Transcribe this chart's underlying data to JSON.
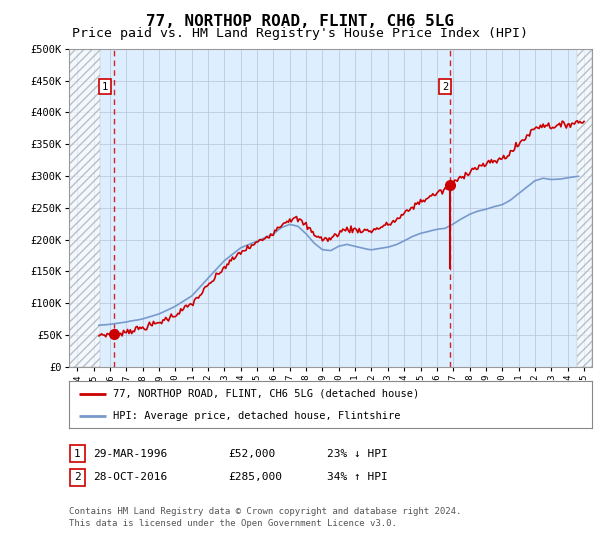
{
  "title": "77, NORTHOP ROAD, FLINT, CH6 5LG",
  "subtitle": "Price paid vs. HM Land Registry's House Price Index (HPI)",
  "title_fontsize": 11.5,
  "subtitle_fontsize": 9.5,
  "xlim": [
    1993.5,
    2025.5
  ],
  "ylim": [
    0,
    500000
  ],
  "yticks": [
    0,
    50000,
    100000,
    150000,
    200000,
    250000,
    300000,
    350000,
    400000,
    450000,
    500000
  ],
  "ytick_labels": [
    "£0",
    "£50K",
    "£100K",
    "£150K",
    "£200K",
    "£250K",
    "£300K",
    "£350K",
    "£400K",
    "£450K",
    "£500K"
  ],
  "xtick_years": [
    1994,
    1995,
    1996,
    1997,
    1998,
    1999,
    2000,
    2001,
    2002,
    2003,
    2004,
    2005,
    2006,
    2007,
    2008,
    2009,
    2010,
    2011,
    2012,
    2013,
    2014,
    2015,
    2016,
    2017,
    2018,
    2019,
    2020,
    2021,
    2022,
    2023,
    2024,
    2025
  ],
  "plot_bg_color": "#ddeeff",
  "grid_color": "#b0b8d0",
  "transaction1": {
    "year": 1996.24,
    "price": 52000,
    "label": "1"
  },
  "transaction2": {
    "year": 2016.82,
    "price": 285000,
    "label": "2"
  },
  "vline_color": "#cc0000",
  "red_line_color": "#cc0000",
  "blue_line_color": "#7799cc",
  "legend_line1": "77, NORTHOP ROAD, FLINT, CH6 5LG (detached house)",
  "legend_line2": "HPI: Average price, detached house, Flintshire",
  "table_row1": [
    "1",
    "29-MAR-1996",
    "£52,000",
    "23% ↓ HPI"
  ],
  "table_row2": [
    "2",
    "28-OCT-2016",
    "£285,000",
    "34% ↑ HPI"
  ],
  "footnote": "Contains HM Land Registry data © Crown copyright and database right 2024.\nThis data is licensed under the Open Government Licence v3.0.",
  "hatch_left_end": 1995.4,
  "hatch_right_start": 2024.6
}
